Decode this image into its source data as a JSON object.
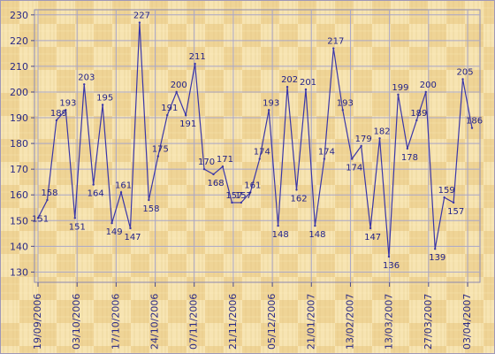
{
  "chart_data": {
    "type": "line",
    "title": "",
    "xlabel": "",
    "ylabel": "",
    "ylim": [
      126,
      232
    ],
    "yticks": [
      130,
      140,
      150,
      160,
      170,
      180,
      190,
      200,
      210,
      220,
      230
    ],
    "xtick_labels": [
      "19/09/2006",
      "03/10/2006",
      "17/10/2006",
      "24/10/2006",
      "07/11/2006",
      "21/11/2006",
      "05/12/2006",
      "21/01/2007",
      "13/02/2007",
      "13/03/2007",
      "27/03/2007",
      "03/04/2007"
    ],
    "grid": true,
    "colors": {
      "line": "#3a36a8",
      "grid": "#a9a6c8",
      "text": "#2a2a86"
    },
    "series": [
      {
        "values": [
          151,
          158,
          189,
          193,
          151,
          203,
          164,
          195,
          149,
          161,
          147,
          227,
          158,
          175,
          191,
          200,
          191,
          211,
          170,
          168,
          171,
          157,
          157,
          161,
          174,
          193,
          148,
          202,
          162,
          201,
          148,
          174,
          217,
          193,
          174,
          179,
          147,
          182,
          136,
          199,
          178,
          189,
          200,
          139,
          159,
          157,
          205,
          186
        ]
      }
    ]
  }
}
